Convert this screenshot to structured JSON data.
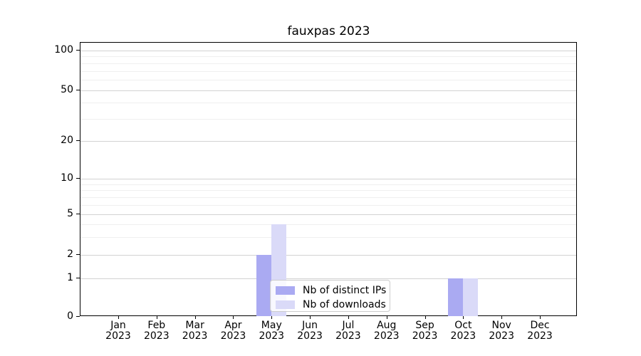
{
  "chart_data": {
    "type": "bar",
    "title": "fauxpas 2023",
    "categories": [
      "Jan",
      "Feb",
      "Mar",
      "Apr",
      "May",
      "Jun",
      "Jul",
      "Aug",
      "Sep",
      "Oct",
      "Nov",
      "Dec"
    ],
    "category_year": "2023",
    "series": [
      {
        "name": "Nb of distinct IPs",
        "color": "#aaaaf2",
        "values": [
          0,
          0,
          0,
          0,
          2,
          0,
          0,
          0,
          0,
          1,
          0,
          0
        ]
      },
      {
        "name": "Nb of downloads",
        "color": "#dadaf8",
        "values": [
          0,
          0,
          0,
          0,
          4,
          0,
          0,
          0,
          0,
          1,
          0,
          0
        ]
      }
    ],
    "xlabel": "",
    "ylabel": "",
    "y_axis": {
      "scale": "symlog",
      "major_ticks": [
        0,
        1,
        2,
        5,
        10,
        20,
        50,
        100
      ],
      "minor_gridlines": [
        3,
        4,
        6,
        7,
        8,
        9,
        30,
        40,
        60,
        70,
        80,
        90
      ],
      "ylim_top_value": 110
    },
    "grid": true,
    "legend_position": "lower center"
  },
  "colors": {
    "bar_distinct_ips": "#aaaaf2",
    "bar_downloads": "#dadaf8",
    "grid_major": "#d2d2d2",
    "grid_minor": "#efefef",
    "spine": "#000000",
    "legend_border": "#cccccc",
    "background": "#ffffff"
  }
}
